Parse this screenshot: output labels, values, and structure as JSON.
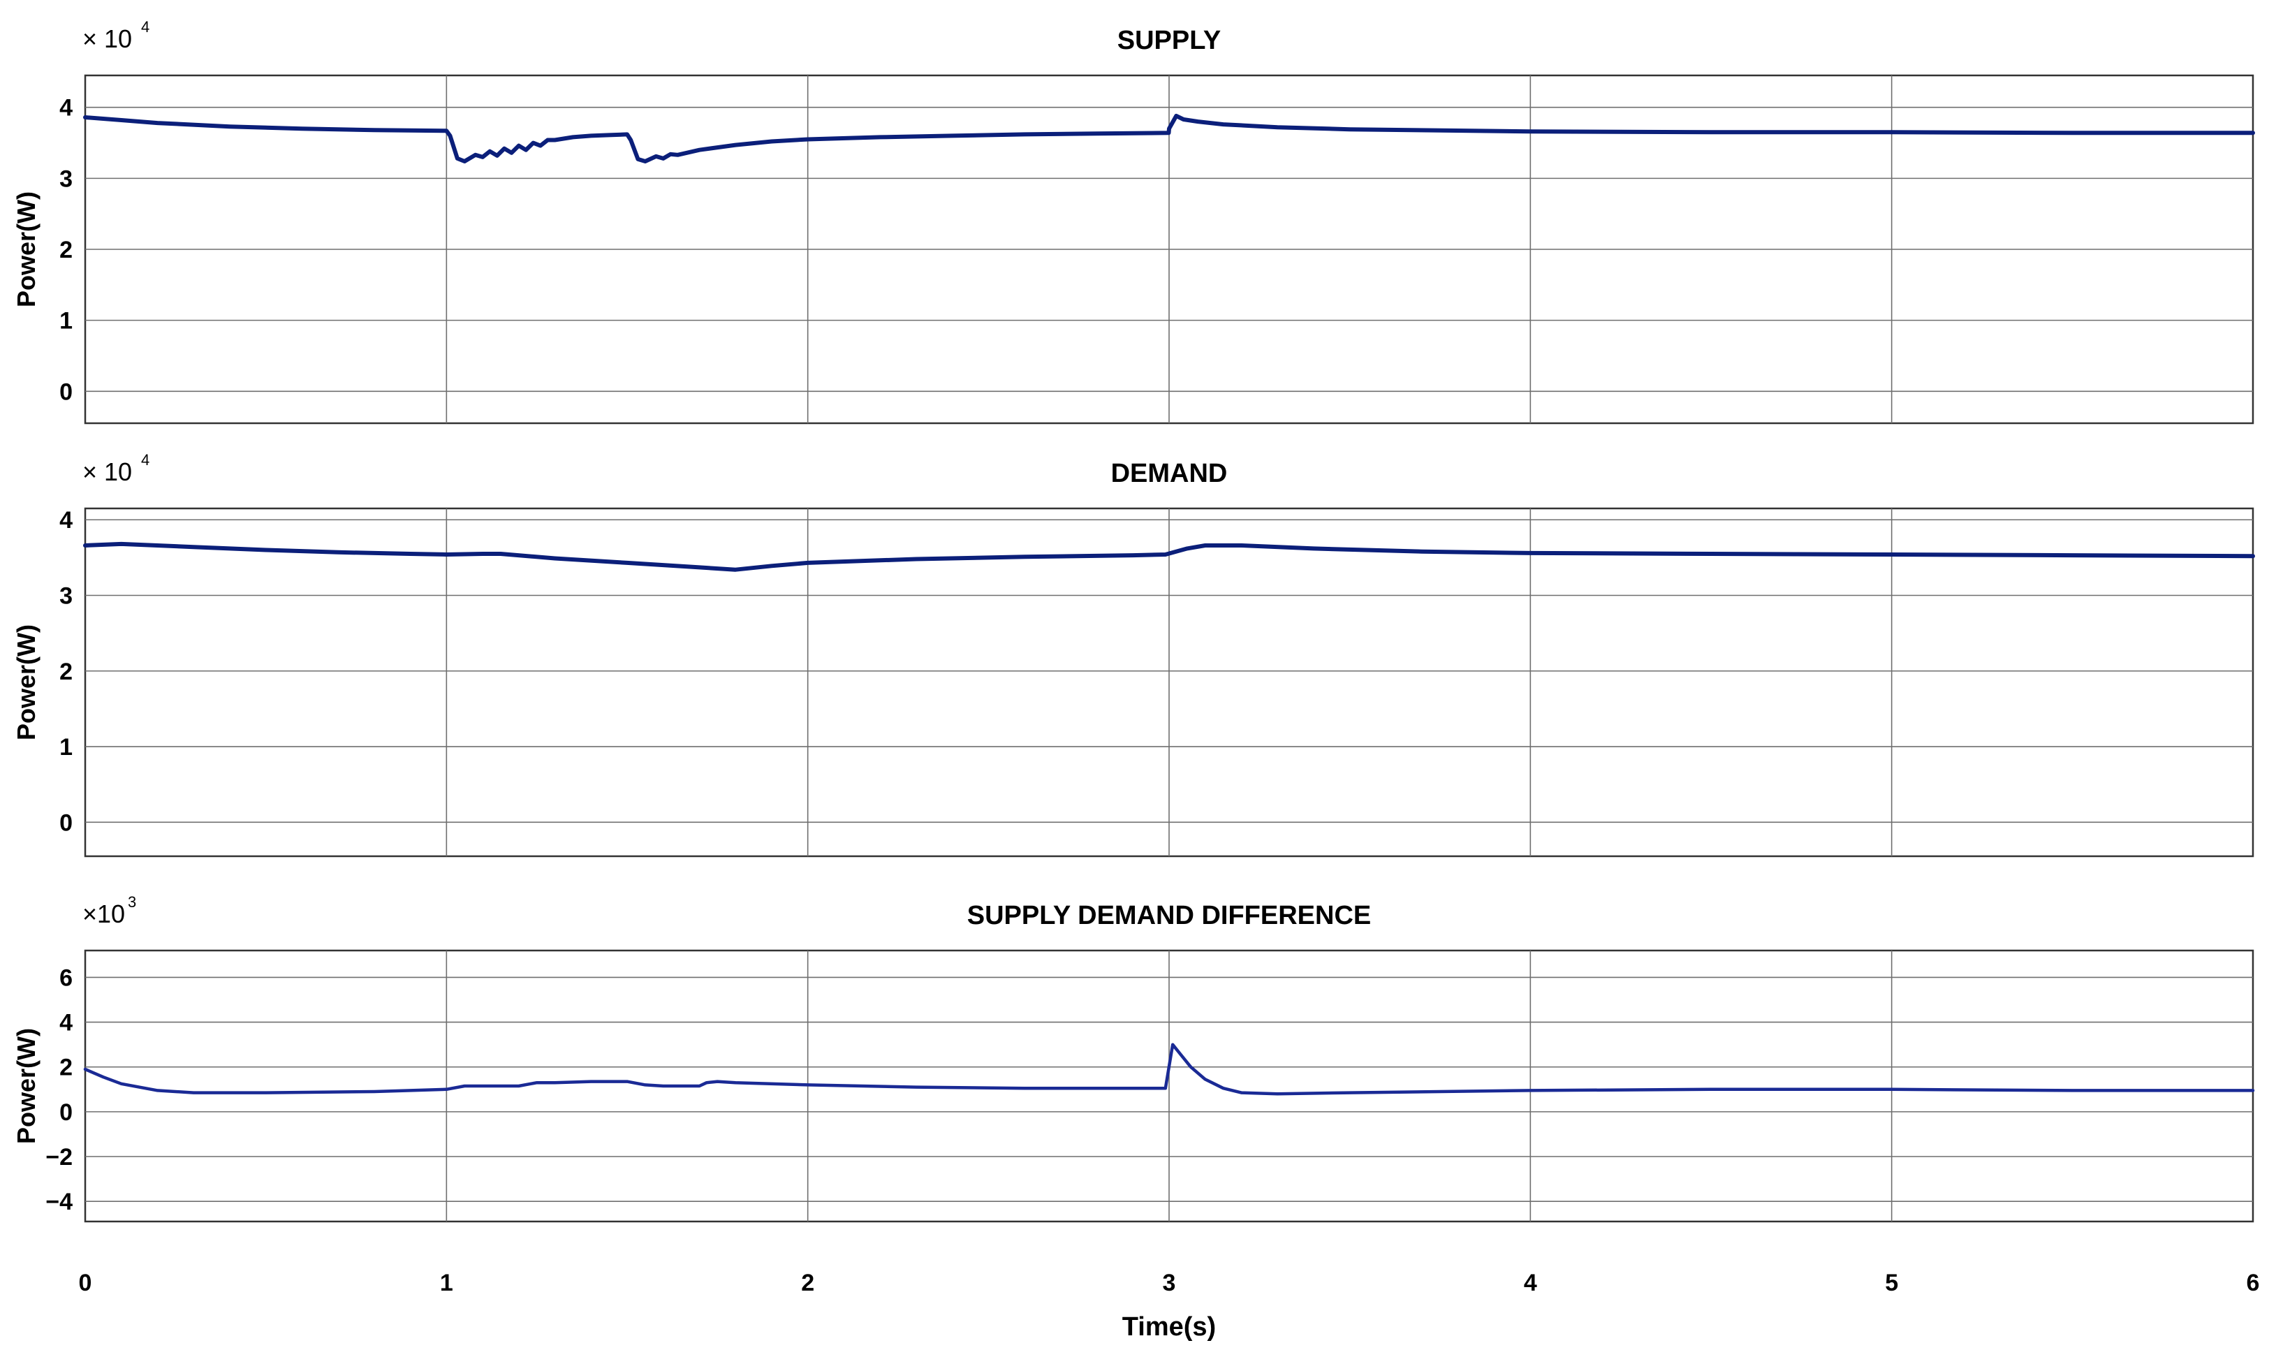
{
  "chart_data": [
    {
      "type": "line",
      "title": "SUPPLY",
      "ylabel": "Power(W)",
      "xlabel": "",
      "multiplier": {
        "base": "× 10",
        "exponent": "4"
      },
      "xlim": [
        0,
        6
      ],
      "ylim": [
        -0.45,
        4.45
      ],
      "xticks": [
        "0",
        "1",
        "2",
        "3",
        "4",
        "5",
        "6"
      ],
      "yticks": [
        {
          "value": 0,
          "label": "0"
        },
        {
          "value": 1,
          "label": "1"
        },
        {
          "value": 2,
          "label": "2"
        },
        {
          "value": 3,
          "label": "3"
        },
        {
          "value": 4,
          "label": "4"
        }
      ],
      "grid": true,
      "color": "#0b1f7a",
      "series": [
        {
          "x": [
            0,
            0.1,
            0.2,
            0.4,
            0.6,
            0.8,
            1.0,
            1.01,
            1.03,
            1.05,
            1.08,
            1.1,
            1.12,
            1.14,
            1.16,
            1.18,
            1.2,
            1.22,
            1.24,
            1.26,
            1.28,
            1.3,
            1.35,
            1.4,
            1.45,
            1.5,
            1.51,
            1.53,
            1.55,
            1.58,
            1.6,
            1.62,
            1.64,
            1.7,
            1.8,
            1.9,
            2.0,
            2.2,
            2.4,
            2.6,
            2.8,
            2.999,
            3.0,
            3.02,
            3.04,
            3.08,
            3.15,
            3.3,
            3.5,
            4.0,
            4.5,
            5.0,
            5.5,
            6.0
          ],
          "y": [
            3.86,
            3.82,
            3.78,
            3.73,
            3.7,
            3.68,
            3.67,
            3.6,
            3.28,
            3.24,
            3.33,
            3.3,
            3.38,
            3.32,
            3.42,
            3.36,
            3.46,
            3.4,
            3.5,
            3.46,
            3.54,
            3.54,
            3.58,
            3.6,
            3.61,
            3.62,
            3.54,
            3.27,
            3.24,
            3.31,
            3.28,
            3.34,
            3.33,
            3.4,
            3.47,
            3.52,
            3.55,
            3.58,
            3.6,
            3.62,
            3.63,
            3.64,
            3.7,
            3.88,
            3.83,
            3.8,
            3.76,
            3.72,
            3.69,
            3.66,
            3.65,
            3.65,
            3.64,
            3.64
          ]
        }
      ]
    },
    {
      "type": "line",
      "title": "DEMAND",
      "ylabel": "Power(W)",
      "xlabel": "",
      "multiplier": {
        "base": "× 10",
        "exponent": "4"
      },
      "xlim": [
        0,
        6
      ],
      "ylim": [
        -0.45,
        4.15
      ],
      "xticks": [
        "0",
        "1",
        "2",
        "3",
        "4",
        "5",
        "6"
      ],
      "yticks": [
        {
          "value": 0,
          "label": "0"
        },
        {
          "value": 1,
          "label": "1"
        },
        {
          "value": 2,
          "label": "2"
        },
        {
          "value": 3,
          "label": "3"
        },
        {
          "value": 4,
          "label": "4"
        }
      ],
      "grid": true,
      "color": "#0b1f7a",
      "series": [
        {
          "x": [
            0,
            0.1,
            0.3,
            0.5,
            0.7,
            0.9,
            1.0,
            1.1,
            1.15,
            1.3,
            1.5,
            1.7,
            1.8,
            1.9,
            2.0,
            2.3,
            2.6,
            2.9,
            2.99,
            3.05,
            3.1,
            3.2,
            3.4,
            3.7,
            4.0,
            4.5,
            5.0,
            5.5,
            6.0
          ],
          "y": [
            3.66,
            3.68,
            3.64,
            3.6,
            3.57,
            3.55,
            3.54,
            3.55,
            3.55,
            3.49,
            3.43,
            3.37,
            3.34,
            3.39,
            3.43,
            3.48,
            3.51,
            3.53,
            3.54,
            3.62,
            3.66,
            3.66,
            3.62,
            3.58,
            3.56,
            3.55,
            3.54,
            3.53,
            3.52
          ]
        }
      ]
    },
    {
      "type": "line",
      "title": "SUPPLY DEMAND DIFFERENCE",
      "ylabel": "Power(W)",
      "xlabel": "Time(s)",
      "multiplier": {
        "base": "×10",
        "exponent": "3"
      },
      "xlim": [
        0,
        6
      ],
      "ylim": [
        -4.9,
        7.2
      ],
      "xticks": [
        "0",
        "1",
        "2",
        "3",
        "4",
        "5",
        "6"
      ],
      "yticks": [
        {
          "value": -4,
          "label": "−4"
        },
        {
          "value": -2,
          "label": "−2"
        },
        {
          "value": 0,
          "label": "0"
        },
        {
          "value": 2,
          "label": "2"
        },
        {
          "value": 4,
          "label": "4"
        },
        {
          "value": 6,
          "label": "6"
        }
      ],
      "grid": true,
      "color": "#1a2a95",
      "series": [
        {
          "x": [
            0,
            0.05,
            0.1,
            0.2,
            0.3,
            0.5,
            0.8,
            1.0,
            1.05,
            1.2,
            1.25,
            1.3,
            1.4,
            1.5,
            1.55,
            1.6,
            1.7,
            1.72,
            1.75,
            1.8,
            2.0,
            2.3,
            2.6,
            2.99,
            3.01,
            3.03,
            3.06,
            3.1,
            3.15,
            3.2,
            3.3,
            3.5,
            4.0,
            4.5,
            5.0,
            5.5,
            6.0
          ],
          "y": [
            1.9,
            1.55,
            1.25,
            0.95,
            0.85,
            0.85,
            0.9,
            1.0,
            1.15,
            1.15,
            1.3,
            1.3,
            1.35,
            1.35,
            1.2,
            1.15,
            1.15,
            1.3,
            1.35,
            1.3,
            1.2,
            1.1,
            1.05,
            1.05,
            3.0,
            2.6,
            2.0,
            1.45,
            1.05,
            0.85,
            0.8,
            0.85,
            0.95,
            1.0,
            1.0,
            0.95,
            0.95
          ]
        }
      ]
    }
  ]
}
